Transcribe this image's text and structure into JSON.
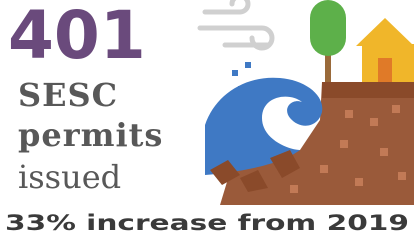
{
  "stat": {
    "number": "401",
    "lines": [
      "SESC",
      "permits",
      "issued"
    ],
    "footnote": "33% increase from 2019"
  }
}
